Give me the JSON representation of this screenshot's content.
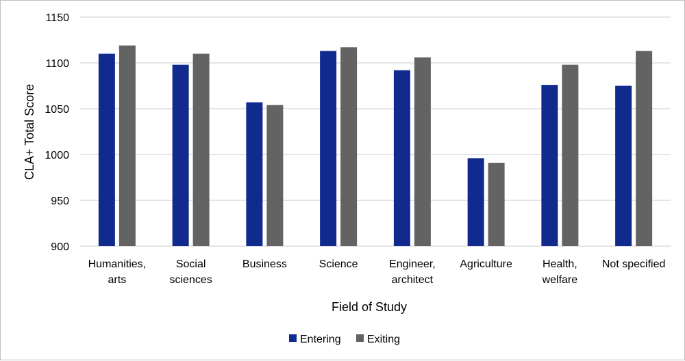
{
  "chart_data": {
    "type": "bar",
    "title": "",
    "xlabel": "Field of Study",
    "ylabel": "CLA+ Total Score",
    "ylim": [
      900,
      1150
    ],
    "yticks": [
      900,
      950,
      1000,
      1050,
      1100,
      1150
    ],
    "grid": true,
    "legend_position": "bottom",
    "categories": [
      [
        "Humanities,",
        "arts"
      ],
      [
        "Social",
        "sciences"
      ],
      [
        "Business"
      ],
      [
        "Science"
      ],
      [
        "Engineer,",
        "architect"
      ],
      [
        "Agriculture"
      ],
      [
        "Health,",
        "welfare"
      ],
      [
        "Not specified"
      ]
    ],
    "series": [
      {
        "name": "Entering",
        "color": "#102a8e",
        "values": [
          1110,
          1098,
          1057,
          1113,
          1092,
          996,
          1076,
          1075
        ]
      },
      {
        "name": "Exiting",
        "color": "#636363",
        "values": [
          1119,
          1110,
          1054,
          1117,
          1106,
          991,
          1098,
          1113
        ]
      }
    ],
    "gridline_color": "#c8c8c8"
  }
}
